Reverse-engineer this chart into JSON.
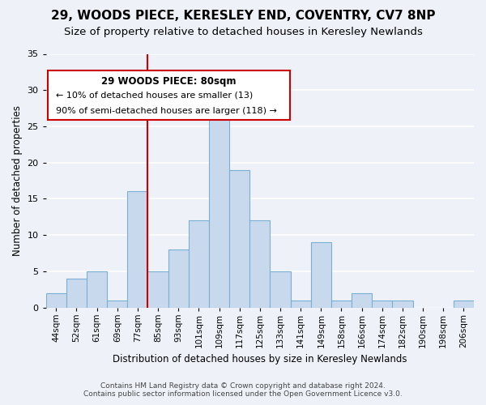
{
  "title": "29, WOODS PIECE, KERESLEY END, COVENTRY, CV7 8NP",
  "subtitle": "Size of property relative to detached houses in Keresley Newlands",
  "xlabel": "Distribution of detached houses by size in Keresley Newlands",
  "ylabel": "Number of detached properties",
  "footer_line1": "Contains HM Land Registry data © Crown copyright and database right 2024.",
  "footer_line2": "Contains public sector information licensed under the Open Government Licence v3.0.",
  "annotation_title": "29 WOODS PIECE: 80sqm",
  "annotation_line1": "← 10% of detached houses are smaller (13)",
  "annotation_line2": "90% of semi-detached houses are larger (118) →",
  "bar_labels": [
    "44sqm",
    "52sqm",
    "61sqm",
    "69sqm",
    "77sqm",
    "85sqm",
    "93sqm",
    "101sqm",
    "109sqm",
    "117sqm",
    "125sqm",
    "133sqm",
    "141sqm",
    "149sqm",
    "158sqm",
    "166sqm",
    "174sqm",
    "182sqm",
    "190sqm",
    "198sqm",
    "206sqm"
  ],
  "bar_values": [
    2,
    4,
    5,
    1,
    16,
    5,
    8,
    12,
    26,
    19,
    12,
    5,
    1,
    9,
    1,
    2,
    1,
    1,
    0,
    0,
    1
  ],
  "bar_color": "#c9d9ed",
  "bar_edge_color": "#7aafd4",
  "background_color": "#eef2f8",
  "grid_color": "#ffffff",
  "vline_x": 4.5,
  "vline_color": "#cc0000",
  "ylim": [
    0,
    35
  ],
  "yticks": [
    0,
    5,
    10,
    15,
    20,
    25,
    30,
    35
  ],
  "title_fontsize": 11,
  "subtitle_fontsize": 9.5,
  "annotation_box_edge_color": "#cc0000",
  "annotation_box_face_color": "#ffffff"
}
